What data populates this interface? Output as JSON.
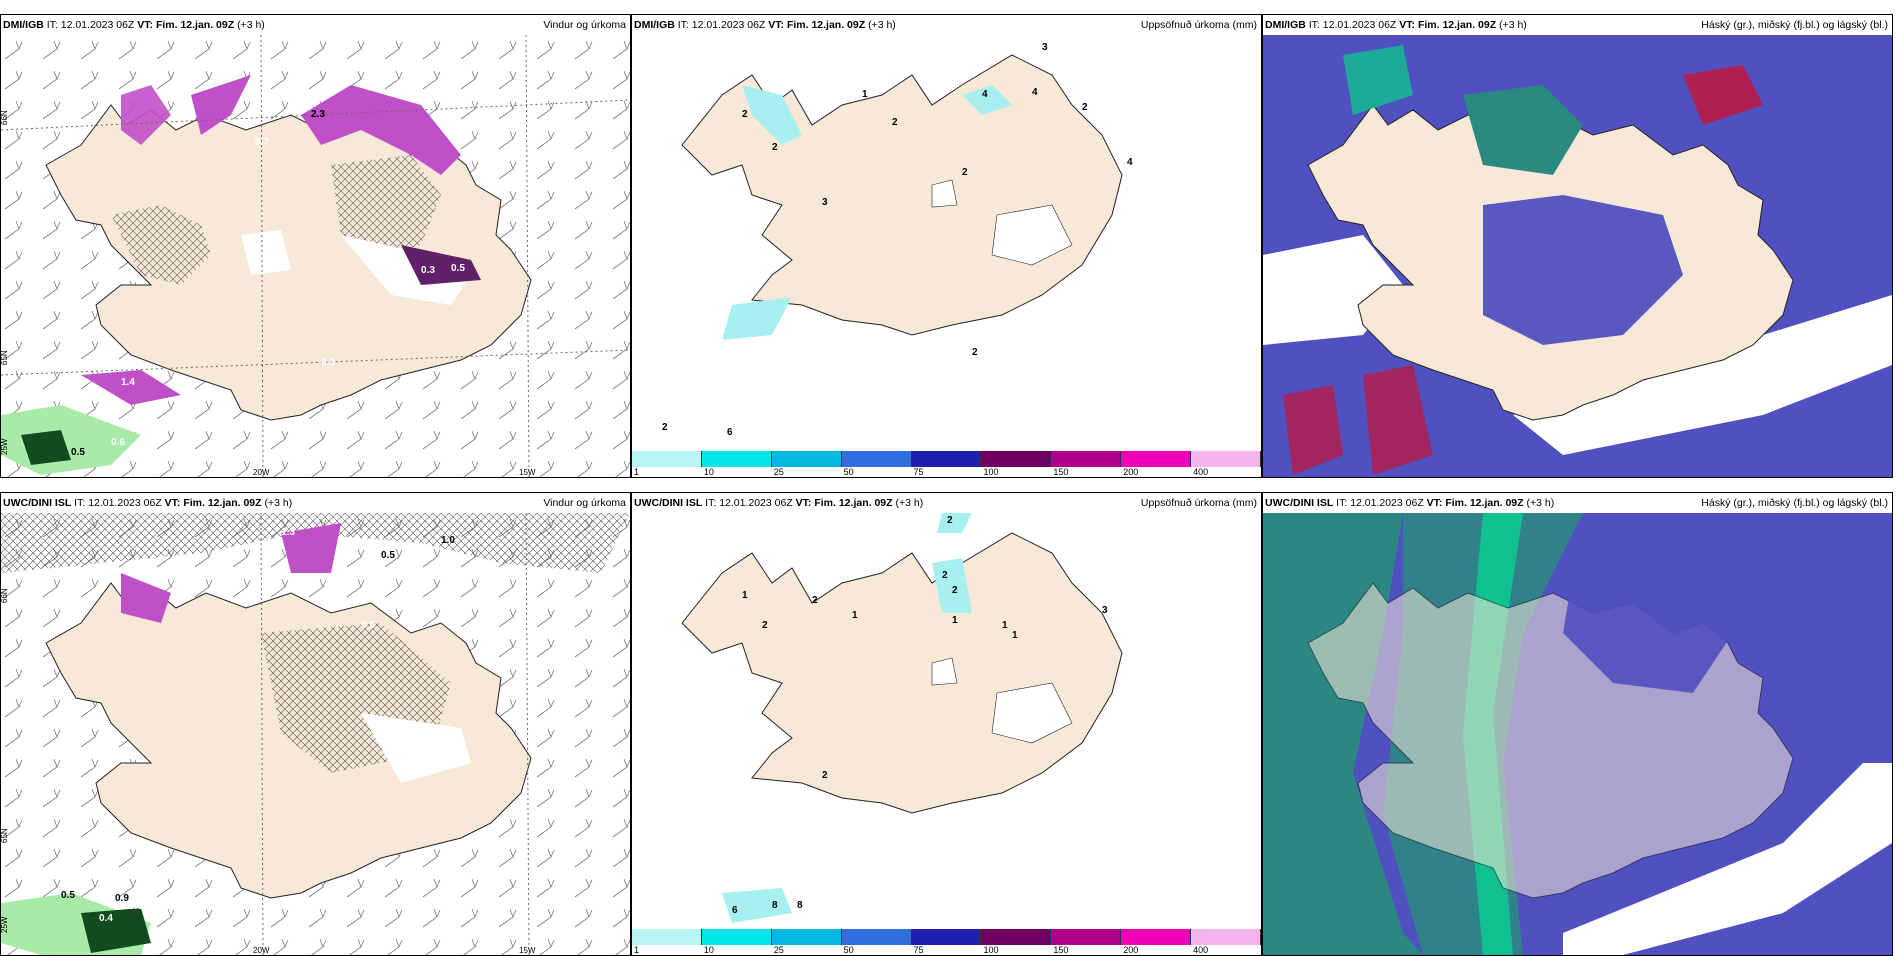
{
  "panels": [
    {
      "id": "p1",
      "source": "DMI/IGB",
      "it_label": "IT:",
      "it": "12.01.2023 06Z",
      "vt_label": "VT:",
      "vt": "Fim. 12.jan. 09Z",
      "lead": "(+3 h)",
      "title": "Vindur og úrkoma",
      "grid_labels": [
        "66N",
        "65N",
        "25W",
        "20W",
        "15W"
      ],
      "values": [
        "2.3",
        "0.7",
        "0.3",
        "0.5",
        "0.6",
        "0.5",
        "1.4",
        "0.3"
      ]
    },
    {
      "id": "p2",
      "source": "DMI/IGB",
      "it_label": "IT:",
      "it": "12.01.2023 06Z",
      "vt_label": "VT:",
      "vt": "Fim. 12.jan. 09Z",
      "lead": "(+3 h)",
      "title": "Uppsöfnuð úrkoma (mm)",
      "values": [
        "3",
        "1",
        "2",
        "4",
        "4",
        "2",
        "2",
        "4",
        "2",
        "2",
        "2",
        "3",
        "2",
        "6"
      ]
    },
    {
      "id": "p3",
      "source": "DMI/IGB",
      "it_label": "IT:",
      "it": "12.01.2023 06Z",
      "vt_label": "VT:",
      "vt": "Fim. 12.jan. 09Z",
      "lead": "(+3 h)",
      "title": "Háský (gr.), miðský (fj.bl.) og lágský (bl.)"
    },
    {
      "id": "p4",
      "source": "UWC/DINI ISL",
      "it_label": "IT:",
      "it": "12.01.2023 06Z",
      "vt_label": "VT:",
      "vt": "Fim. 12.jan. 09Z",
      "lead": "(+3 h)",
      "title": "Vindur og úrkoma",
      "grid_labels": [
        "66N",
        "65N",
        "25W",
        "20W",
        "15W"
      ],
      "values": [
        "1.3",
        "0.5",
        "1.0",
        "0.6",
        "0.6",
        "0.5",
        "0.9",
        "0.4",
        "0.8"
      ]
    },
    {
      "id": "p5",
      "source": "UWC/DINI ISL",
      "it_label": "IT:",
      "it": "12.01.2023 06Z",
      "vt_label": "VT:",
      "vt": "Fim. 12.jan. 09Z",
      "lead": "(+3 h)",
      "title": "Uppsöfnuð úrkoma (mm)",
      "values": [
        "2",
        "1",
        "2",
        "1",
        "2",
        "2",
        "1",
        "1",
        "3",
        "2",
        "1",
        "2",
        "6",
        "8",
        "8"
      ]
    },
    {
      "id": "p6",
      "source": "UWC/DINI ISL",
      "it_label": "IT:",
      "it": "12.01.2023 06Z",
      "vt_label": "VT:",
      "vt": "Fim. 12.jan. 09Z",
      "lead": "(+3 h)",
      "title": "Háský (gr.), miðský (fj.bl.) og lágský (bl.)"
    }
  ],
  "colorbar": {
    "ticks": [
      "1",
      "10",
      "25",
      "50",
      "75",
      "100",
      "150",
      "200",
      "400"
    ],
    "colors": [
      "#b8f6f6",
      "#00e5e5",
      "#00b8e0",
      "#2f6fe0",
      "#2020b0",
      "#700060",
      "#b0008a",
      "#f000b8",
      "#f4b4ee"
    ]
  },
  "colors": {
    "land": "#f7e8d8",
    "precip": "#c050c8",
    "precip_dark": "#60206a",
    "low_cloud": "#5050c0",
    "mid_cloud": "#10c090",
    "high_cloud": "#b02050",
    "light_precip": "#a8f0f0"
  }
}
